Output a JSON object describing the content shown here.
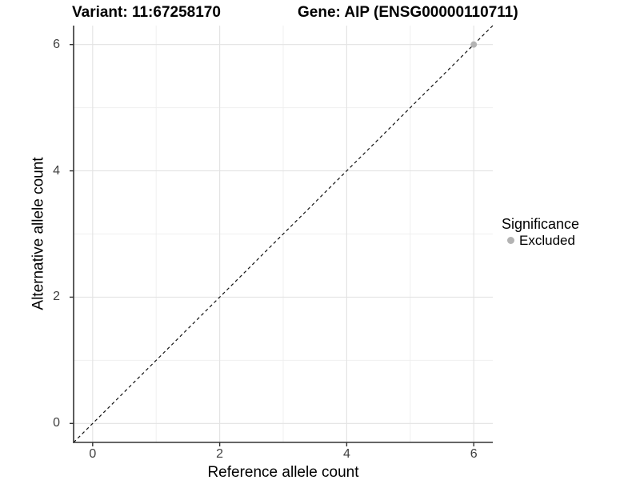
{
  "header": {
    "variant_title": "Variant: 11:67258170",
    "gene_title": "Gene: AIP (ENSG00000110711)"
  },
  "legend": {
    "title": "Significance",
    "items": [
      {
        "label": "Excluded",
        "color": "#b3b3b3"
      }
    ]
  },
  "colors": {
    "background": "#ffffff",
    "grid_major": "#e3e3e3",
    "grid_minor": "#efefef",
    "axis_line": "#333333",
    "tick_mark": "#333333",
    "tick_text": "#404040",
    "reference_line": "#111111",
    "point_excluded": "#b3b3b3"
  },
  "chart_data": {
    "type": "scatter",
    "title": "",
    "xlabel": "Reference allele count",
    "ylabel": "Alternative allele count",
    "xlim": [
      -0.3,
      6.3
    ],
    "ylim": [
      -0.3,
      6.3
    ],
    "x_ticks": [
      0,
      2,
      4,
      6
    ],
    "y_ticks": [
      0,
      2,
      4,
      6
    ],
    "x_minor_ticks": [
      1,
      3,
      5
    ],
    "y_minor_ticks": [
      1,
      3,
      5
    ],
    "grid": "major+minor",
    "legend_position": "right",
    "points": [
      {
        "x": 6,
        "y": 6,
        "significance": "Excluded",
        "color": "#b3b3b3"
      }
    ],
    "reference_line": {
      "label": "identity",
      "slope": 1,
      "intercept": 0,
      "style": "dashed",
      "color": "#111111"
    }
  }
}
